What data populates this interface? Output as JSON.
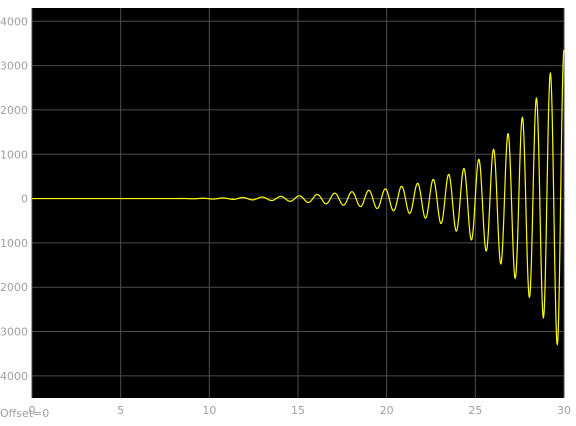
{
  "chart_data": {
    "type": "line",
    "title": "",
    "xlabel": "",
    "ylabel": "",
    "xlim": [
      0,
      30
    ],
    "ylim": [
      -4500,
      4300
    ],
    "xticks": [
      0,
      5,
      10,
      15,
      20,
      25,
      30
    ],
    "yticks": [
      -4000,
      -3000,
      -2000,
      -1000,
      0,
      1000,
      2000,
      3000,
      4000
    ],
    "grid": true,
    "background": "#000000",
    "grid_color": "#4d4d4d",
    "line_color": "#ffff00",
    "offset_label": "Offset=0",
    "series": [
      {
        "signal": "growing oscillation",
        "peaks": [
          {
            "x": 8.0,
            "y": 0
          },
          {
            "x": 11.0,
            "y": 15
          },
          {
            "x": 13.0,
            "y": 35
          },
          {
            "x": 15.0,
            "y": 60
          },
          {
            "x": 17.0,
            "y": 120
          },
          {
            "x": 18.5,
            "y": 170
          },
          {
            "x": 20.0,
            "y": 220
          },
          {
            "x": 21.5,
            "y": 320
          },
          {
            "x": 23.0,
            "y": 470
          },
          {
            "x": 24.5,
            "y": 700
          },
          {
            "x": 26.0,
            "y": 1100
          },
          {
            "x": 27.5,
            "y": 1750
          },
          {
            "x": 28.5,
            "y": 2300
          },
          {
            "x": 29.2,
            "y": 2800
          },
          {
            "x": 29.8,
            "y": 3350
          }
        ],
        "troughs": [
          {
            "x": 8.0,
            "y": 0
          },
          {
            "x": 11.0,
            "y": -15
          },
          {
            "x": 13.0,
            "y": -35
          },
          {
            "x": 15.0,
            "y": -70
          },
          {
            "x": 17.0,
            "y": -130
          },
          {
            "x": 18.5,
            "y": -180
          },
          {
            "x": 20.0,
            "y": -250
          },
          {
            "x": 21.5,
            "y": -350
          },
          {
            "x": 23.0,
            "y": -550
          },
          {
            "x": 24.5,
            "y": -850
          },
          {
            "x": 26.0,
            "y": -1300
          },
          {
            "x": 27.5,
            "y": -1900
          },
          {
            "x": 28.5,
            "y": -2500
          },
          {
            "x": 29.4,
            "y": -3000
          },
          {
            "x": 30.0,
            "y": -3800
          }
        ]
      }
    ]
  }
}
